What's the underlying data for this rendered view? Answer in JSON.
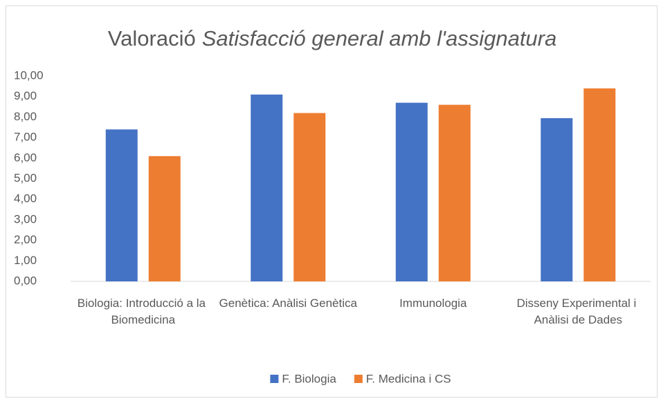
{
  "chart_data": {
    "type": "bar",
    "title": "Valoració",
    "title_emphasis": "Satisfacció general amb l'assignatura",
    "categories": [
      "Biologia: Introducció a la Biomedicina",
      "Genètica: Anàlisi Genètica",
      "Immunologia",
      "Disseny Experimental i Anàlisi de Dades"
    ],
    "series": [
      {
        "name": "F. Biologia",
        "color": "#4472c4",
        "values": [
          7.4,
          9.1,
          8.7,
          7.95
        ]
      },
      {
        "name": "F. Medicina i CS",
        "color": "#ed7d31",
        "values": [
          6.1,
          8.2,
          8.6,
          9.4
        ]
      }
    ],
    "ylim": [
      0,
      10
    ],
    "yticks": [
      {
        "value": 0,
        "label": "0,00"
      },
      {
        "value": 1,
        "label": "1,00"
      },
      {
        "value": 2,
        "label": "2,00"
      },
      {
        "value": 3,
        "label": "3,00"
      },
      {
        "value": 4,
        "label": "4,00"
      },
      {
        "value": 5,
        "label": "5,00"
      },
      {
        "value": 6,
        "label": "6,00"
      },
      {
        "value": 7,
        "label": "7,00"
      },
      {
        "value": 8,
        "label": "8,00"
      },
      {
        "value": 9,
        "label": "9,00"
      },
      {
        "value": 10,
        "label": "10,00"
      }
    ],
    "grid": false,
    "legend": "bottom"
  }
}
